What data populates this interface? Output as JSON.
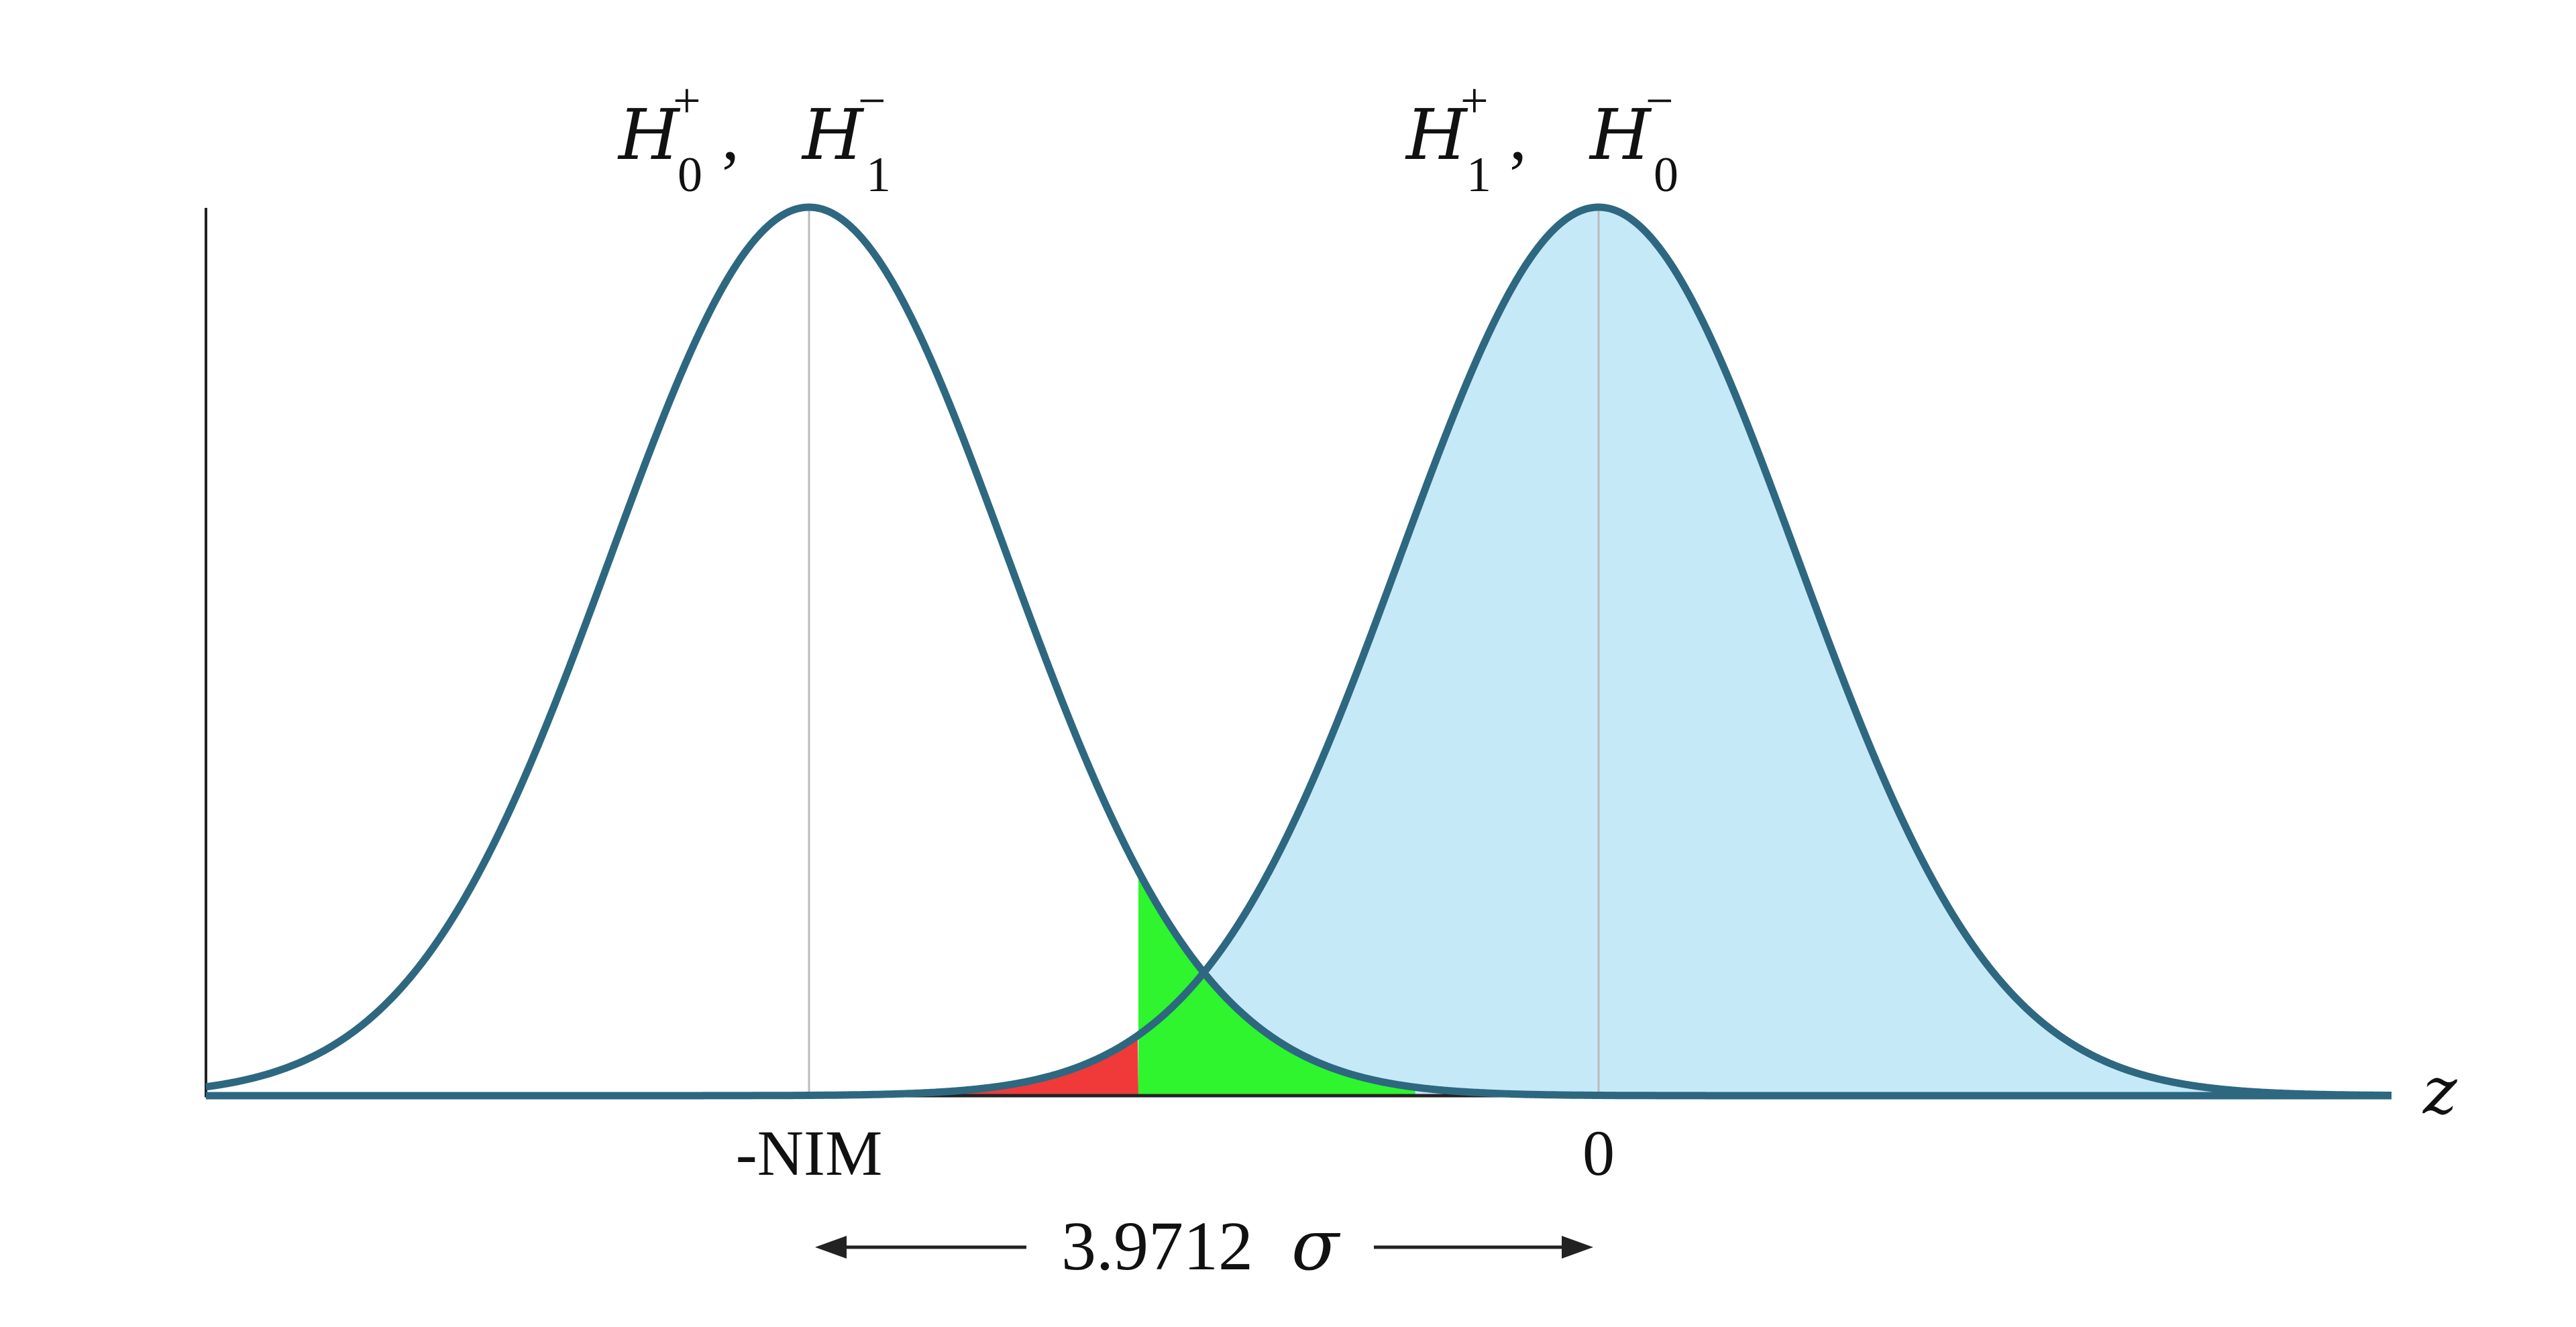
{
  "figure": {
    "left_peak_label": {
      "h_plus": "H",
      "h_plus_sup": "+",
      "h_plus_sub": "0",
      "separator": ",",
      "h_minus": "H",
      "h_minus_sup": "−",
      "h_minus_sub": "1"
    },
    "right_peak_label": {
      "h_plus": "H",
      "h_plus_sup": "+",
      "h_plus_sub": "1",
      "separator": ",",
      "h_minus": "H",
      "h_minus_sup": "−",
      "h_minus_sub": "0"
    },
    "x_axis_label": "z",
    "left_tick_label": "-NIM",
    "right_tick_label": "0",
    "distance_value": "3.9712",
    "distance_unit": "σ",
    "colors": {
      "curve": "#2d6880",
      "fill_right": "#c6e9f8",
      "fill_green": "#2ef52e",
      "fill_red": "#f03a3a",
      "axis": "#222222",
      "center_line": "#bbbbbb"
    }
  }
}
